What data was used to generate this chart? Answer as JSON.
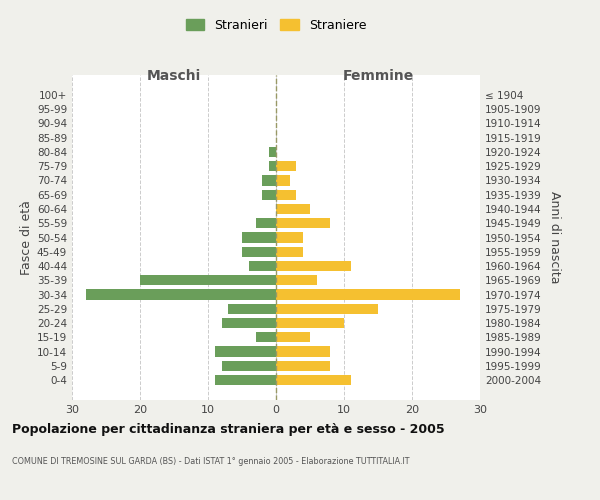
{
  "age_groups": [
    "100+",
    "95-99",
    "90-94",
    "85-89",
    "80-84",
    "75-79",
    "70-74",
    "65-69",
    "60-64",
    "55-59",
    "50-54",
    "45-49",
    "40-44",
    "35-39",
    "30-34",
    "25-29",
    "20-24",
    "15-19",
    "10-14",
    "5-9",
    "0-4"
  ],
  "birth_years": [
    "≤ 1904",
    "1905-1909",
    "1910-1914",
    "1915-1919",
    "1920-1924",
    "1925-1929",
    "1930-1934",
    "1935-1939",
    "1940-1944",
    "1945-1949",
    "1950-1954",
    "1955-1959",
    "1960-1964",
    "1965-1969",
    "1970-1974",
    "1975-1979",
    "1980-1984",
    "1985-1989",
    "1990-1994",
    "1995-1999",
    "2000-2004"
  ],
  "males": [
    0,
    0,
    0,
    0,
    1,
    1,
    2,
    2,
    0,
    3,
    5,
    5,
    4,
    20,
    28,
    7,
    8,
    3,
    9,
    8,
    9
  ],
  "females": [
    0,
    0,
    0,
    0,
    0,
    3,
    2,
    3,
    5,
    8,
    4,
    4,
    11,
    6,
    27,
    15,
    10,
    5,
    8,
    8,
    11
  ],
  "male_color": "#6a9e5a",
  "female_color": "#f5c030",
  "background_color": "#f0f0eb",
  "plot_bg_color": "#ffffff",
  "title": "Popolazione per cittadinanza straniera per età e sesso - 2005",
  "subtitle": "COMUNE DI TREMOSINE SUL GARDA (BS) - Dati ISTAT 1° gennaio 2005 - Elaborazione TUTTITALIA.IT",
  "header_left": "Maschi",
  "header_right": "Femmine",
  "ylabel_left": "Fasce di età",
  "ylabel_right": "Anni di nascita",
  "legend_males": "Stranieri",
  "legend_females": "Straniere",
  "xlim": 30
}
